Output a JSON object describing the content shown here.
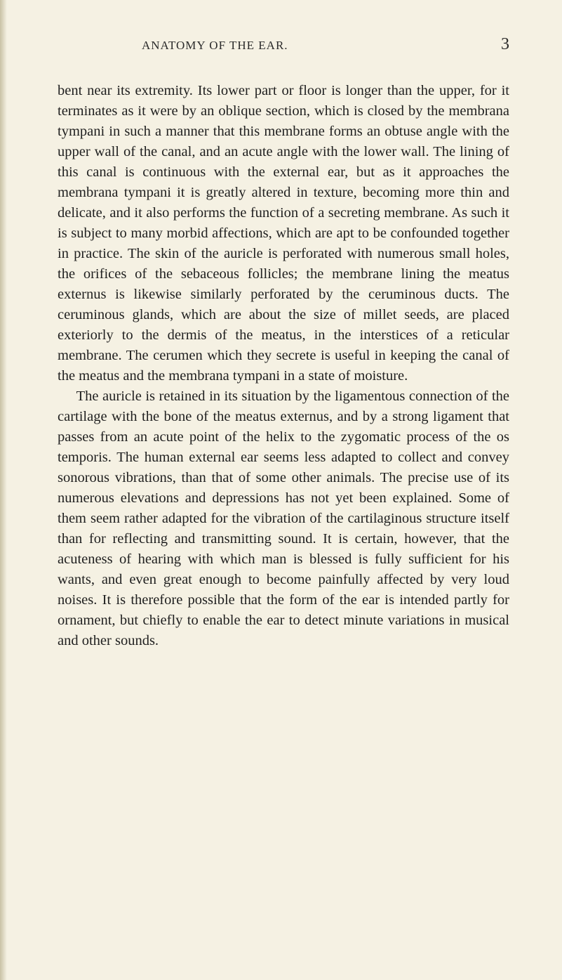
{
  "page": {
    "running_head": "ANATOMY OF THE EAR.",
    "page_number": "3",
    "paragraphs": [
      "bent near its extremity. Its lower part or floor is longer than the upper, for it terminates as it were by an oblique section, which is closed by the membrana tympani in such a manner that this membrane forms an obtuse angle with the upper wall of the canal, and an acute angle with the lower wall. The lining of this canal is continuous with the external ear, but as it approaches the membrana tympani it is greatly altered in texture, becoming more thin and delicate, and it also performs the function of a secreting membrane. As such it is subject to many morbid affections, which are apt to be confounded together in practice. The skin of the auricle is perforated with numerous small holes, the orifices of the sebaceous follicles; the membrane lining the meatus externus is likewise similarly perforated by the ceruminous ducts. The ceruminous glands, which are about the size of millet seeds, are placed exteriorly to the dermis of the meatus, in the interstices of a reticular membrane. The cerumen which they secrete is useful in keeping the canal of the meatus and the membrana tympani in a state of moisture.",
      "The auricle is retained in its situation by the ligamentous connection of the cartilage with the bone of the meatus externus, and by a strong ligament that passes from an acute point of the helix to the zygomatic process of the os temporis. The human external ear seems less adapted to collect and convey sonorous vibrations, than that of some other animals. The precise use of its numerous elevations and depressions has not yet been explained. Some of them seem rather adapted for the vibration of the cartilaginous structure itself than for reflecting and transmitting sound. It is certain, however, that the acuteness of hearing with which man is blessed is fully sufficient for his wants, and even great enough to become painfully affected by very loud noises. It is therefore possible that the form of the ear is intended partly for ornament, but chiefly to enable the ear to detect minute variations in musical and other sounds."
    ]
  },
  "colors": {
    "background": "#f5f1e3",
    "text": "#1f1f1f",
    "edge_shadow": "#c9c2a5"
  },
  "typography": {
    "body_fontsize": 20.5,
    "line_height": 1.415,
    "header_fontsize": 17,
    "pagenum_fontsize": 24,
    "font_family": "Georgia, Times New Roman, serif"
  }
}
